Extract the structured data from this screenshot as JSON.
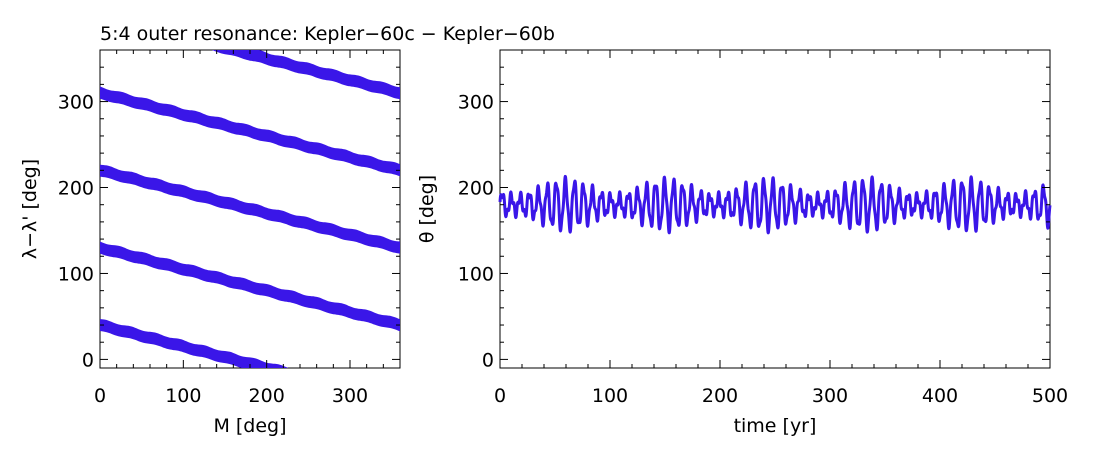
{
  "title": "5:4 outer resonance: Kepler−60c − Kepler−60b",
  "colors": {
    "series": "#3a16e8",
    "axes": "#000000",
    "background": "#ffffff"
  },
  "chart_data": [
    {
      "type": "scatter",
      "name": "left-panel",
      "xlabel": "M [deg]",
      "ylabel": "λ−λ' [deg]",
      "xlim": [
        0,
        360
      ],
      "ylim": [
        -10,
        360
      ],
      "xticks": [
        0,
        100,
        200,
        300
      ],
      "xtick_labels": [
        "0",
        "100",
        "200",
        "300"
      ],
      "yticks": [
        0,
        100,
        200,
        300
      ],
      "ytick_labels": [
        "0",
        "100",
        "200",
        "300"
      ],
      "x_minor_step": 20,
      "y_minor_step": 20,
      "band_slope": -0.25,
      "band_thickness_deg": 14,
      "band_intercepts": [
        40,
        130,
        220,
        310,
        400
      ],
      "series": [
        {
          "name": "band-1",
          "x": [
            0,
            200
          ],
          "y": [
            40,
            -10
          ]
        },
        {
          "name": "band-2",
          "x": [
            0,
            360
          ],
          "y": [
            130,
            40
          ]
        },
        {
          "name": "band-3",
          "x": [
            0,
            360
          ],
          "y": [
            220,
            130
          ]
        },
        {
          "name": "band-4",
          "x": [
            0,
            360
          ],
          "y": [
            310,
            220
          ]
        },
        {
          "name": "band-5",
          "x": [
            160,
            360
          ],
          "y": [
            360,
            310
          ]
        }
      ]
    },
    {
      "type": "line",
      "name": "right-panel",
      "xlabel": "time [yr]",
      "ylabel": "θ [deg]",
      "xlim": [
        0,
        500
      ],
      "ylim": [
        -10,
        360
      ],
      "xticks": [
        0,
        100,
        200,
        300,
        400,
        500
      ],
      "xtick_labels": [
        "0",
        "100",
        "200",
        "300",
        "400",
        "500"
      ],
      "yticks": [
        0,
        100,
        200,
        300
      ],
      "ytick_labels": [
        "0",
        "100",
        "200",
        "300"
      ],
      "x_minor_step": 20,
      "y_minor_step": 20,
      "series": [
        {
          "name": "theta",
          "libration_center": 180,
          "fast_period_yr": 8.2,
          "fast_amplitude": [
            10,
            28
          ],
          "envelope_period_yr": 91,
          "secondary_period_yr": 3.1,
          "secondary_amplitude": 5,
          "t_range": [
            0,
            500
          ]
        }
      ]
    }
  ]
}
